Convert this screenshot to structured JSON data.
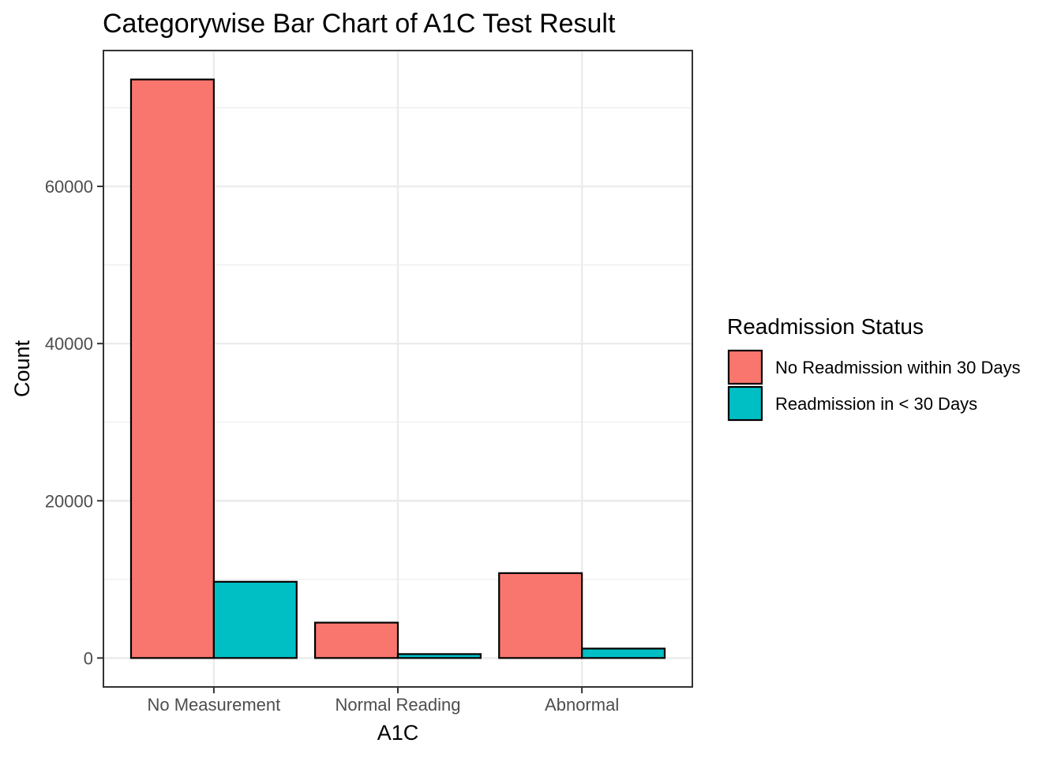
{
  "chart_data": {
    "type": "bar",
    "title": "Categorywise Bar Chart of A1C Test Result",
    "xlabel": "A1C",
    "ylabel": "Count",
    "categories": [
      "No Measurement",
      "Normal Reading",
      "Abnormal"
    ],
    "series": [
      {
        "name": "No Readmission within 30 Days",
        "color": "#f8766d",
        "values": [
          73600,
          4500,
          10800
        ]
      },
      {
        "name": "Readmission in < 30 Days",
        "color": "#00bfc4",
        "values": [
          9700,
          500,
          1200
        ]
      }
    ],
    "yticks": [
      0,
      20000,
      40000,
      60000
    ],
    "ytick_labels": [
      "0",
      "20000",
      "40000",
      "60000"
    ],
    "ylim": [
      -3680,
      77280
    ],
    "grid": true,
    "legend": {
      "title": "Readmission Status",
      "position": "right"
    }
  }
}
